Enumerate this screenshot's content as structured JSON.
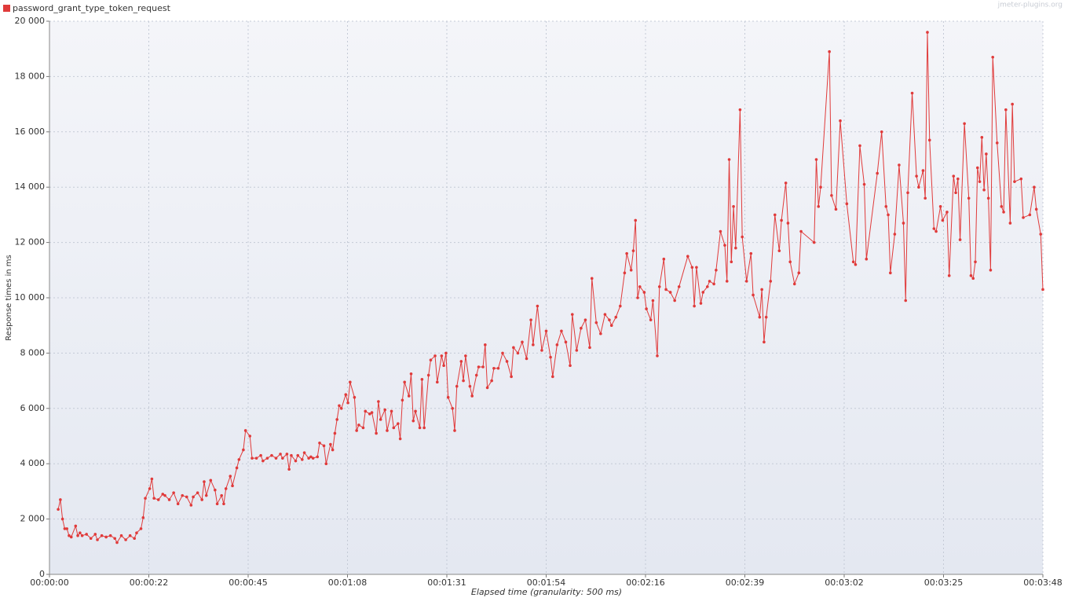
{
  "chart_data": {
    "type": "line",
    "xlabel": "Elapsed time (granularity: 500 ms)",
    "ylabel": "Response times in ms",
    "watermark": "jmeter-plugins.org",
    "grid": true,
    "xlim": [
      0,
      228
    ],
    "ylim": [
      0,
      20000
    ],
    "xticks": [
      {
        "value": 0,
        "label": "00:00:00"
      },
      {
        "value": 22.8,
        "label": "00:00:22"
      },
      {
        "value": 45.6,
        "label": "00:00:45"
      },
      {
        "value": 68.4,
        "label": "00:01:08"
      },
      {
        "value": 91.2,
        "label": "00:01:31"
      },
      {
        "value": 114,
        "label": "00:01:54"
      },
      {
        "value": 136.8,
        "label": "00:02:16"
      },
      {
        "value": 159.6,
        "label": "00:02:39"
      },
      {
        "value": 182.4,
        "label": "00:03:02"
      },
      {
        "value": 205.2,
        "label": "00:03:25"
      },
      {
        "value": 228,
        "label": "00:03:48"
      }
    ],
    "yticks": [
      0,
      {
        "value": 2000,
        "label": "2 000"
      },
      {
        "value": 4000,
        "label": "4 000"
      },
      {
        "value": 6000,
        "label": "6 000"
      },
      {
        "value": 8000,
        "label": "8 000"
      },
      {
        "value": 10000,
        "label": "10 000"
      },
      {
        "value": 12000,
        "label": "12 000"
      },
      {
        "value": 14000,
        "label": "14 000"
      },
      {
        "value": 16000,
        "label": "16 000"
      },
      {
        "value": 18000,
        "label": "18 000"
      },
      {
        "value": 20000,
        "label": "20 000"
      }
    ],
    "x": [
      2,
      2.5,
      3,
      3.5,
      4,
      4.5,
      5,
      6,
      6.5,
      7,
      7.5,
      8.5,
      9.5,
      10.5,
      11,
      12,
      13,
      14,
      15,
      15.5,
      16.5,
      17.5,
      18.5,
      19.5,
      20,
      21,
      21.5,
      22,
      23,
      23.5,
      24,
      25,
      26,
      26.5,
      27.5,
      28.5,
      29.5,
      30.5,
      31.5,
      32.5,
      33,
      34,
      35,
      35.5,
      36,
      37,
      38,
      38.5,
      39.5,
      40,
      40.5,
      41.5,
      42,
      43,
      43.5,
      44.5,
      45,
      46,
      46.5,
      47.5,
      48.5,
      49,
      50,
      51,
      52,
      53,
      53.5,
      54.5,
      55,
      55.5,
      56.5,
      57,
      58,
      58.5,
      59.5,
      60,
      60.5,
      61.5,
      62,
      63,
      63.5,
      64.5,
      65,
      65.5,
      66,
      66.5,
      67,
      68,
      68.5,
      69,
      70,
      70.5,
      71,
      72,
      72.5,
      73.5,
      74,
      75,
      75.5,
      76,
      77,
      77.5,
      78.5,
      79,
      80,
      80.5,
      81,
      81.5,
      82.5,
      83,
      83.5,
      84,
      85,
      85.5,
      86,
      87,
      87.5,
      88.5,
      89,
      90,
      90.5,
      91,
      91.5,
      92.5,
      93,
      93.5,
      94.5,
      95,
      95.5,
      96.5,
      97,
      98,
      98.5,
      99.5,
      100,
      100.5,
      101.5,
      102,
      103,
      104,
      105,
      106,
      106.5,
      107.5,
      108.5,
      109.5,
      110.5,
      111,
      112,
      113,
      114,
      115,
      115.5,
      116.5,
      117.5,
      118.5,
      119.5,
      120,
      121,
      122,
      123,
      124,
      124.5,
      125.5,
      126.5,
      127.5,
      128.5,
      129,
      130,
      131,
      132,
      132.5,
      133.5,
      134,
      134.5,
      135,
      135.5,
      136.5,
      137,
      138,
      138.5,
      139.5,
      140,
      141,
      141.5,
      142.5,
      143.5,
      144.5,
      146.5,
      147.5,
      148,
      148.5,
      149.5,
      150,
      151,
      151.5,
      152.5,
      153,
      154,
      155,
      155.5,
      156,
      156.5,
      157,
      157.5,
      158.5,
      159,
      160,
      161,
      161.5,
      163,
      163.5,
      164,
      164.5,
      165.5,
      166.5,
      167.5,
      168,
      169,
      169.5,
      170,
      171,
      172,
      172.5,
      175.5,
      176,
      176.5,
      177,
      179,
      179.5,
      180.5,
      181.5,
      183,
      184.5,
      185,
      186,
      187,
      187.5,
      190,
      191,
      192,
      192.5,
      193,
      194,
      195,
      196,
      196.5,
      197,
      198,
      199,
      199.5,
      200.5,
      201,
      201.5,
      202,
      203,
      203.5,
      204.5,
      205,
      206,
      206.5,
      207.5,
      208,
      208.5,
      209,
      210,
      211,
      211.5,
      212,
      212.5,
      213,
      213.5,
      214,
      214.5,
      215,
      215.5,
      216,
      216.5,
      217.5,
      218.5,
      219,
      219.5,
      220.5,
      221,
      221.5,
      223,
      223.5,
      225,
      226,
      226.5,
      227.5,
      228
    ],
    "series": [
      {
        "name": "password_grant_type_token_request",
        "color": "#e03a3a",
        "values": [
          2350,
          2700,
          2000,
          1650,
          1650,
          1400,
          1350,
          1750,
          1400,
          1500,
          1400,
          1450,
          1300,
          1450,
          1250,
          1400,
          1350,
          1400,
          1300,
          1150,
          1400,
          1250,
          1400,
          1300,
          1500,
          1650,
          2050,
          2750,
          3100,
          3450,
          2750,
          2700,
          2900,
          2850,
          2700,
          2950,
          2550,
          2850,
          2800,
          2500,
          2800,
          2950,
          2700,
          3350,
          2850,
          3400,
          3050,
          2550,
          2850,
          2550,
          3100,
          3550,
          3200,
          3850,
          4150,
          4500,
          5200,
          5000,
          4200,
          4200,
          4300,
          4100,
          4200,
          4300,
          4200,
          4350,
          4200,
          4350,
          3800,
          4300,
          4100,
          4300,
          4150,
          4400,
          4200,
          4250,
          4200,
          4250,
          4750,
          4650,
          4000,
          4700,
          4500,
          5100,
          5600,
          6100,
          6000,
          6500,
          6200,
          6950,
          6400,
          5200,
          5400,
          5300,
          5900,
          5800,
          5850,
          5100,
          6250,
          5600,
          5950,
          5200,
          5900,
          5300,
          5450,
          4900,
          6300,
          6950,
          6450,
          7250,
          5550,
          5900,
          5300,
          7050,
          5300,
          7200,
          7750,
          7900,
          6950,
          7900,
          7550,
          8000,
          6400,
          6000,
          5200,
          6800,
          7700,
          7000,
          7900,
          6800,
          6450,
          7200,
          7500,
          7500,
          8300,
          6750,
          7000,
          7450,
          7450,
          8000,
          7700,
          7150,
          8200,
          8000,
          8400,
          7800,
          9200,
          8300,
          9700,
          8100,
          8800,
          7850,
          7150,
          8300,
          8800,
          8400,
          7550,
          9400,
          8100,
          8900,
          9200,
          8200,
          10700,
          9100,
          8700,
          9400,
          9200,
          9000,
          9300,
          9700,
          10900,
          11600,
          11000,
          11700,
          12800,
          10000,
          10400,
          10200,
          9600,
          9200,
          9900,
          7900,
          10400,
          11400,
          10300,
          10200,
          9900,
          10400,
          11500,
          11100,
          9700,
          11100,
          9800,
          10200,
          10400,
          10600,
          10500,
          11000,
          12400,
          11900,
          10600,
          15000,
          11300,
          13300,
          11800,
          16800,
          12200,
          10600,
          11600,
          10100,
          9300,
          10300,
          8400,
          9300,
          10600,
          13000,
          11700,
          12800,
          14150,
          12700,
          11300,
          10500,
          10900,
          12400,
          12000,
          15000,
          13300,
          14000,
          18900,
          13700,
          13200,
          16400,
          13400,
          11300,
          11200,
          15500,
          14100,
          11400,
          14500,
          16000,
          13300,
          13000,
          10900,
          12300,
          14800,
          12700,
          9900,
          13800,
          17400,
          14400,
          14000,
          14600,
          13600,
          19600,
          15700,
          12500,
          12400,
          13300,
          12800,
          13100,
          10800,
          14400,
          13800,
          14300,
          12100,
          16300,
          13600,
          10800,
          10700,
          11300,
          14700,
          14200,
          15800,
          13900,
          15200,
          13600,
          11000,
          18700,
          15600,
          13300,
          13100,
          16800,
          12700,
          17000,
          14200,
          14300,
          12900,
          13000,
          14000,
          13200,
          12300,
          10300
        ]
      }
    ]
  }
}
